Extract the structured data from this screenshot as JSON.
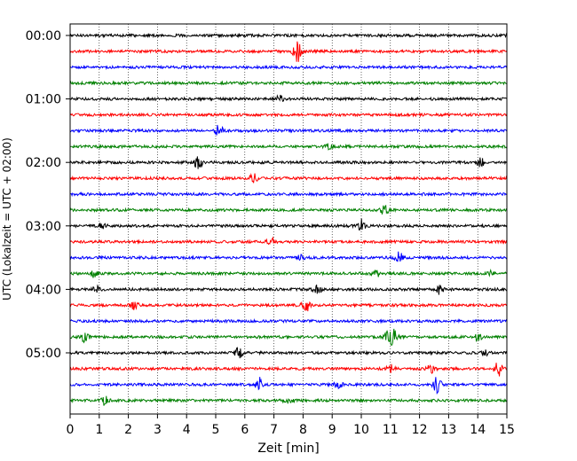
{
  "chart_data": {
    "type": "line",
    "title": "",
    "xlabel": "Zeit  [min]",
    "ylabel": "UTC (Lokalzeit = UTC + 02:00)",
    "xlim": [
      0,
      15
    ],
    "x_ticks": [
      "0",
      "1",
      "2",
      "3",
      "4",
      "5",
      "6",
      "7",
      "8",
      "9",
      "10",
      "11",
      "12",
      "13",
      "14",
      "15"
    ],
    "y_ticks": [
      "00:00",
      "01:00",
      "02:00",
      "03:00",
      "04:00",
      "05:00"
    ],
    "grid": "vertical dotted at each minute",
    "trace_minutes": 15,
    "colors": [
      "#000000",
      "#ff0000",
      "#0000ff",
      "#008000"
    ],
    "series": [
      {
        "start": "00:00",
        "events": []
      },
      {
        "start": "00:15",
        "events": [
          [
            7.8,
            12
          ]
        ]
      },
      {
        "start": "00:30",
        "events": []
      },
      {
        "start": "00:45",
        "events": []
      },
      {
        "start": "01:00",
        "events": [
          [
            7.2,
            4
          ]
        ]
      },
      {
        "start": "01:15",
        "events": []
      },
      {
        "start": "01:30",
        "events": [
          [
            5.1,
            7
          ]
        ]
      },
      {
        "start": "01:45",
        "events": [
          [
            8.9,
            3
          ]
        ]
      },
      {
        "start": "02:00",
        "events": [
          [
            4.4,
            7
          ],
          [
            14.1,
            5
          ]
        ]
      },
      {
        "start": "02:15",
        "events": [
          [
            6.3,
            6
          ]
        ]
      },
      {
        "start": "02:30",
        "events": []
      },
      {
        "start": "02:45",
        "events": [
          [
            10.8,
            7
          ]
        ]
      },
      {
        "start": "03:00",
        "events": [
          [
            10.0,
            7
          ],
          [
            1.1,
            3
          ]
        ]
      },
      {
        "start": "03:15",
        "events": [
          [
            6.9,
            4
          ]
        ]
      },
      {
        "start": "03:30",
        "events": [
          [
            11.3,
            6
          ],
          [
            7.9,
            3
          ]
        ]
      },
      {
        "start": "03:45",
        "events": [
          [
            0.8,
            4
          ],
          [
            10.5,
            4
          ],
          [
            14.5,
            3
          ]
        ]
      },
      {
        "start": "04:00",
        "events": [
          [
            8.5,
            5
          ],
          [
            12.7,
            6
          ],
          [
            0.9,
            3
          ]
        ]
      },
      {
        "start": "04:15",
        "events": [
          [
            8.1,
            8
          ],
          [
            2.2,
            4
          ]
        ]
      },
      {
        "start": "04:30",
        "events": []
      },
      {
        "start": "04:45",
        "events": [
          [
            11.1,
            8
          ],
          [
            0.5,
            5
          ],
          [
            10.9,
            6
          ],
          [
            14.0,
            5
          ]
        ]
      },
      {
        "start": "05:00",
        "events": [
          [
            5.8,
            6
          ],
          [
            14.3,
            4
          ]
        ]
      },
      {
        "start": "05:15",
        "events": [
          [
            14.7,
            8
          ],
          [
            12.4,
            5
          ],
          [
            11.0,
            4
          ]
        ]
      },
      {
        "start": "05:30",
        "events": [
          [
            6.5,
            8
          ],
          [
            12.6,
            9
          ],
          [
            9.2,
            4
          ]
        ]
      },
      {
        "start": "05:45",
        "events": [
          [
            1.2,
            5
          ],
          [
            7.5,
            4
          ]
        ]
      }
    ]
  }
}
